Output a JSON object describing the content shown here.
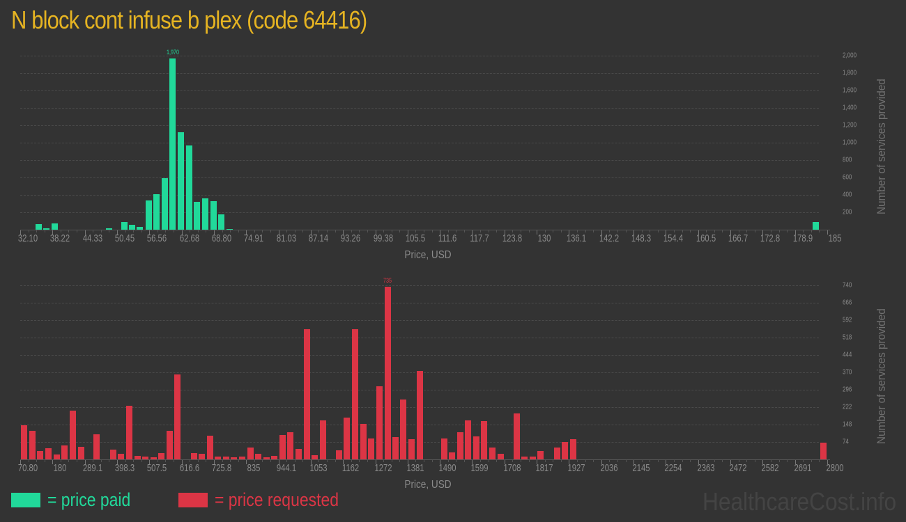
{
  "page": {
    "title": "N block cont infuse b plex (code 64416)",
    "brand": "HealthcareCost.info",
    "colors": {
      "title": "#e6b422",
      "paid": "#21d99a",
      "requested": "#dc3545",
      "text": "#8a8a8a"
    }
  },
  "legend": {
    "items": [
      {
        "label": "= price paid",
        "color": "#21d99a"
      },
      {
        "label": "= price requested",
        "color": "#dc3545"
      }
    ]
  },
  "chart_data": [
    {
      "type": "bar",
      "title": "Price paid",
      "xlabel": "Price, USD",
      "ylabel": "Number of services provided",
      "ylim": [
        0,
        2000
      ],
      "yticks": [
        200,
        400,
        600,
        800,
        1000,
        1200,
        1400,
        1600,
        1800,
        2000
      ],
      "ytick_labels": [
        "200",
        "400",
        "600",
        "800",
        "1,000",
        "1,200",
        "1,400",
        "1,600",
        "1,800",
        "2,000"
      ],
      "xtick_labels": [
        "32.10",
        "38.22",
        "44.33",
        "50.45",
        "56.56",
        "62.68",
        "68.80",
        "74.91",
        "81.03",
        "87.14",
        "93.26",
        "99.38",
        "105.5",
        "111.6",
        "117.7",
        "123.8",
        "130",
        "136.1",
        "142.2",
        "148.3",
        "154.4",
        "160.5",
        "166.7",
        "172.8",
        "178.9",
        "185"
      ],
      "peak_label": "1,970",
      "color": "#21d99a",
      "grid": true,
      "bars": [
        {
          "x": 35.6,
          "value": 65
        },
        {
          "x": 37.1,
          "value": 20
        },
        {
          "x": 38.7,
          "value": 75
        },
        {
          "x": 48.9,
          "value": 20
        },
        {
          "x": 51.8,
          "value": 85
        },
        {
          "x": 53.3,
          "value": 60
        },
        {
          "x": 54.8,
          "value": 35
        },
        {
          "x": 56.4,
          "value": 336
        },
        {
          "x": 57.9,
          "value": 410
        },
        {
          "x": 59.5,
          "value": 590
        },
        {
          "x": 61.0,
          "value": 1970
        },
        {
          "x": 62.5,
          "value": 1120
        },
        {
          "x": 64.1,
          "value": 970
        },
        {
          "x": 65.6,
          "value": 320
        },
        {
          "x": 67.1,
          "value": 360
        },
        {
          "x": 68.7,
          "value": 330
        },
        {
          "x": 70.2,
          "value": 175
        },
        {
          "x": 71.8,
          "value": 10
        },
        {
          "x": 182.8,
          "value": 88
        }
      ]
    },
    {
      "type": "bar",
      "title": "Price requested",
      "xlabel": "Price, USD",
      "ylabel": "Number of services provided",
      "ylim": [
        0,
        740
      ],
      "yticks": [
        74,
        148,
        222,
        296,
        370,
        444,
        518,
        592,
        666,
        740
      ],
      "ytick_labels": [
        "74",
        "148",
        "222",
        "296",
        "370",
        "444",
        "518",
        "592",
        "666",
        "740"
      ],
      "xtick_labels": [
        "70.80",
        "180",
        "289.1",
        "398.3",
        "507.5",
        "616.6",
        "725.8",
        "835",
        "944.1",
        "1053",
        "1162",
        "1272",
        "1381",
        "1490",
        "1599",
        "1708",
        "1817",
        "1927",
        "2036",
        "2145",
        "2254",
        "2363",
        "2472",
        "2582",
        "2691",
        "2800"
      ],
      "peak_label": "735",
      "color": "#dc3545",
      "grid": true,
      "bars": [
        {
          "x": 84,
          "value": 144
        },
        {
          "x": 112,
          "value": 120
        },
        {
          "x": 139,
          "value": 35
        },
        {
          "x": 166,
          "value": 46
        },
        {
          "x": 194,
          "value": 20
        },
        {
          "x": 221,
          "value": 58
        },
        {
          "x": 248,
          "value": 206
        },
        {
          "x": 276,
          "value": 52
        },
        {
          "x": 330,
          "value": 106
        },
        {
          "x": 385,
          "value": 40
        },
        {
          "x": 412,
          "value": 23
        },
        {
          "x": 439,
          "value": 227
        },
        {
          "x": 467,
          "value": 16
        },
        {
          "x": 494,
          "value": 13
        },
        {
          "x": 521,
          "value": 10
        },
        {
          "x": 548,
          "value": 26
        },
        {
          "x": 576,
          "value": 120
        },
        {
          "x": 603,
          "value": 360
        },
        {
          "x": 658,
          "value": 27
        },
        {
          "x": 685,
          "value": 24
        },
        {
          "x": 712,
          "value": 100
        },
        {
          "x": 740,
          "value": 12
        },
        {
          "x": 767,
          "value": 12
        },
        {
          "x": 794,
          "value": 9
        },
        {
          "x": 821,
          "value": 12
        },
        {
          "x": 849,
          "value": 50
        },
        {
          "x": 876,
          "value": 24
        },
        {
          "x": 903,
          "value": 9
        },
        {
          "x": 930,
          "value": 15
        },
        {
          "x": 958,
          "value": 104
        },
        {
          "x": 985,
          "value": 115
        },
        {
          "x": 1012,
          "value": 44
        },
        {
          "x": 1040,
          "value": 553
        },
        {
          "x": 1067,
          "value": 18
        },
        {
          "x": 1094,
          "value": 166
        },
        {
          "x": 1149,
          "value": 38
        },
        {
          "x": 1176,
          "value": 178
        },
        {
          "x": 1203,
          "value": 553
        },
        {
          "x": 1231,
          "value": 151
        },
        {
          "x": 1258,
          "value": 89
        },
        {
          "x": 1285,
          "value": 311
        },
        {
          "x": 1313,
          "value": 735
        },
        {
          "x": 1340,
          "value": 95
        },
        {
          "x": 1367,
          "value": 255
        },
        {
          "x": 1394,
          "value": 86
        },
        {
          "x": 1422,
          "value": 376
        },
        {
          "x": 1504,
          "value": 89
        },
        {
          "x": 1531,
          "value": 30
        },
        {
          "x": 1558,
          "value": 115
        },
        {
          "x": 1586,
          "value": 166
        },
        {
          "x": 1613,
          "value": 98
        },
        {
          "x": 1640,
          "value": 163
        },
        {
          "x": 1667,
          "value": 50
        },
        {
          "x": 1695,
          "value": 24
        },
        {
          "x": 1749,
          "value": 195
        },
        {
          "x": 1777,
          "value": 12
        },
        {
          "x": 1804,
          "value": 12
        },
        {
          "x": 1831,
          "value": 36
        },
        {
          "x": 1886,
          "value": 50
        },
        {
          "x": 1913,
          "value": 74
        },
        {
          "x": 1940,
          "value": 86
        },
        {
          "x": 2786,
          "value": 71
        }
      ]
    }
  ]
}
